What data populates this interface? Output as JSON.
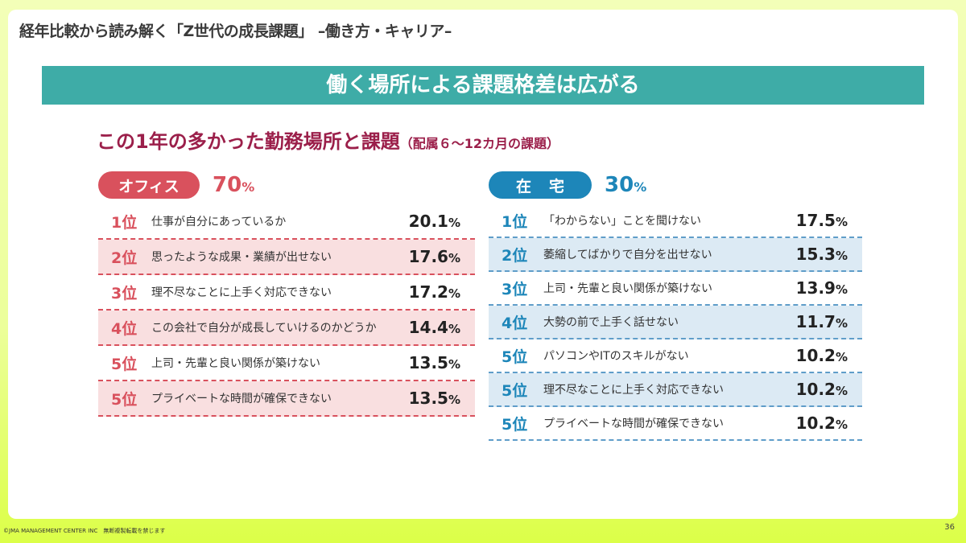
{
  "doc_title": "経年比較から読み解く「Z世代の成長課題」 –働き方・キャリア–",
  "banner": "働く場所による課題格差は広がる",
  "subtitle": "この1年の多かった勤務場所と課題",
  "subtitle_note": "（配属６～12カ月の課題）",
  "office": {
    "label": "オフィス",
    "share": "70",
    "unit": "%",
    "items": [
      {
        "rank": "1位",
        "text": "仕事が自分にあっているか",
        "value": "20.1",
        "unit": "%"
      },
      {
        "rank": "2位",
        "text": "思ったような成果・業績が出せない",
        "value": "17.6",
        "unit": "%"
      },
      {
        "rank": "3位",
        "text": "理不尽なことに上手く対応できない",
        "value": "17.2",
        "unit": "%"
      },
      {
        "rank": "4位",
        "text": "この会社で自分が成長していけるのかどうか",
        "value": "14.4",
        "unit": "%"
      },
      {
        "rank": "5位",
        "text": "上司・先輩と良い関係が築けない",
        "value": "13.5",
        "unit": "%"
      },
      {
        "rank": "5位",
        "text": "プライベートな時間が確保できない",
        "value": "13.5",
        "unit": "%"
      }
    ]
  },
  "home": {
    "label": "在宅",
    "share": "30",
    "unit": "%",
    "items": [
      {
        "rank": "1位",
        "text": "「わからない」ことを聞けない",
        "value": "17.5",
        "unit": "%"
      },
      {
        "rank": "2位",
        "text": "萎縮してばかりで自分を出せない",
        "value": "15.3",
        "unit": "%"
      },
      {
        "rank": "3位",
        "text": "上司・先輩と良い関係が築けない",
        "value": "13.9",
        "unit": "%"
      },
      {
        "rank": "4位",
        "text": "大勢の前で上手く話せない",
        "value": "11.7",
        "unit": "%"
      },
      {
        "rank": "5位",
        "text": "パソコンやITのスキルがない",
        "value": "10.2",
        "unit": "%"
      },
      {
        "rank": "5位",
        "text": "理不尽なことに上手く対応できない",
        "value": "10.2",
        "unit": "%"
      },
      {
        "rank": "5位",
        "text": "プライベートな時間が確保できない",
        "value": "10.2",
        "unit": "%"
      }
    ]
  },
  "footer": "©JMA MANAGEMENT CENTER INC　無断複製転載を禁じます",
  "page_number": "36"
}
